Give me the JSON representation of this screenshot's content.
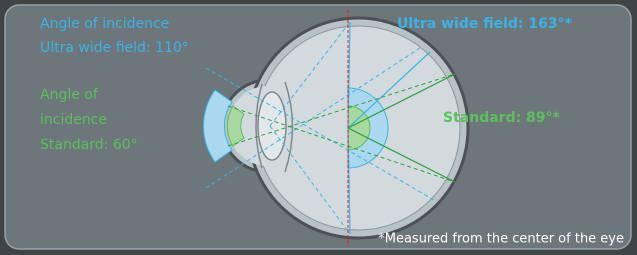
{
  "left_labels": {
    "ultra_wide": [
      "Angle of incidence",
      "Ultra wide field: 110°"
    ],
    "standard": [
      "Angle of",
      "incidence",
      "Standard: 60°"
    ]
  },
  "right_labels": {
    "ultra_wide": "Ultra wide field: 163°*",
    "standard": "Standard: 89°*"
  },
  "footnote": "*Measured from the center of the eye"
}
